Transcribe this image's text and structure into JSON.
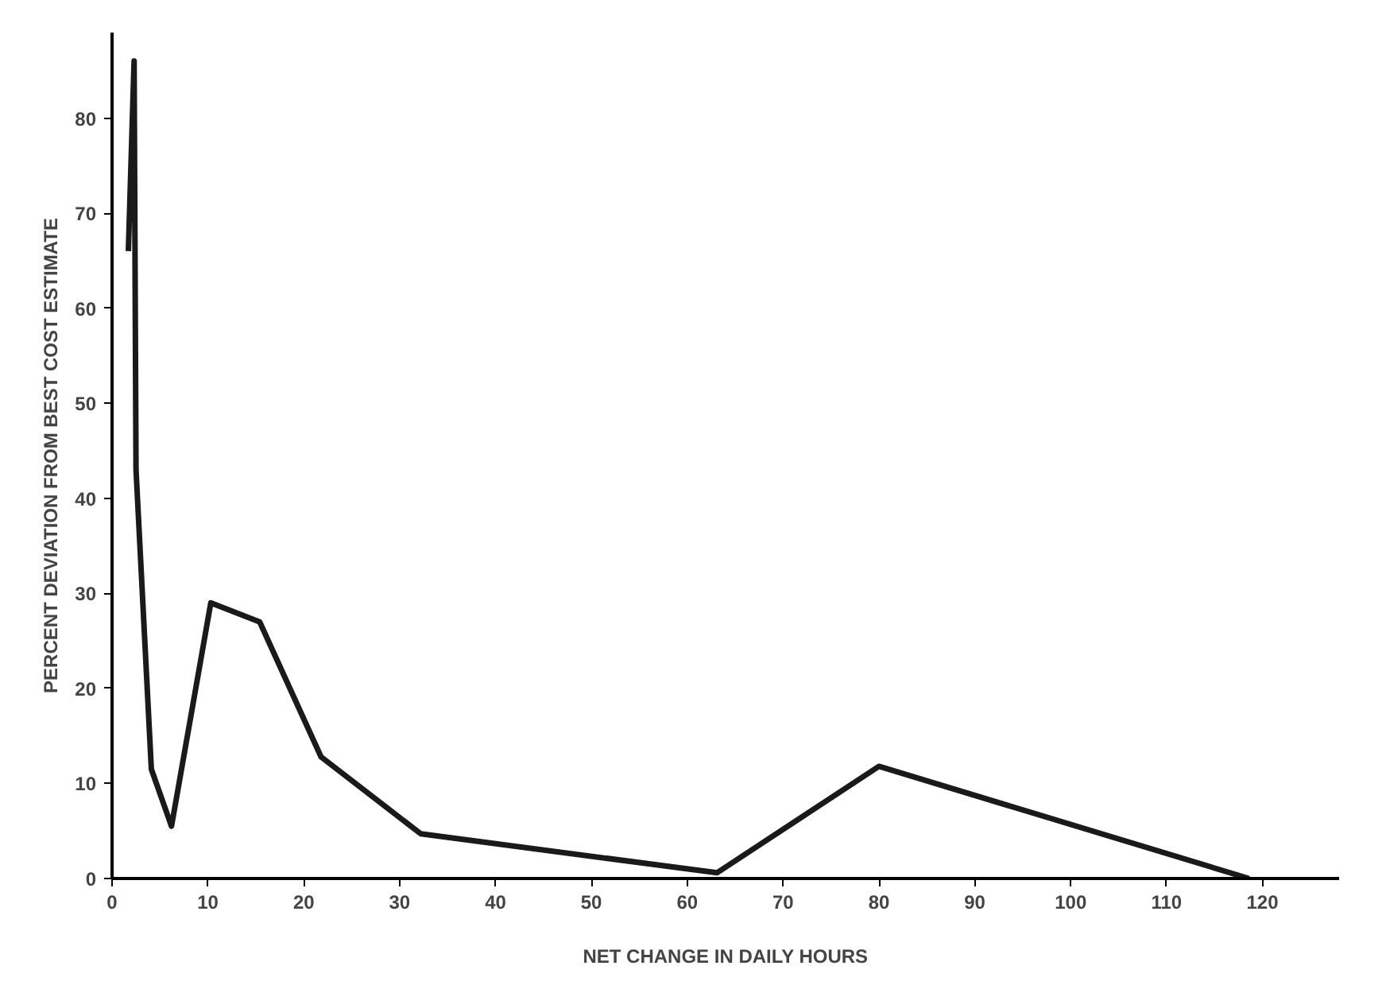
{
  "chart_data": {
    "type": "line",
    "xlabel": "NET CHANGE IN DAILY HOURS",
    "ylabel": "PERCENT DEVIATION FROM BEST COST ESTIMATE",
    "x": [
      1.7,
      2.3,
      2.5,
      4.1,
      6.2,
      10.3,
      15.4,
      21.8,
      32.2,
      63.1,
      80,
      118.6
    ],
    "series": [
      {
        "color": "#1a1a1a",
        "values": [
          66,
          86,
          43,
          11.5,
          5.5,
          29,
          27,
          12.8,
          4.7,
          0.6,
          11.8,
          0
        ]
      }
    ],
    "xlim": [
      0,
      128
    ],
    "ylim": [
      0,
      89
    ],
    "xticks": [
      0,
      10,
      20,
      30,
      40,
      50,
      60,
      70,
      80,
      90,
      100,
      110,
      120
    ],
    "yticks": [
      0,
      10,
      20,
      30,
      40,
      50,
      60,
      70,
      80
    ],
    "line_style": "solid"
  }
}
